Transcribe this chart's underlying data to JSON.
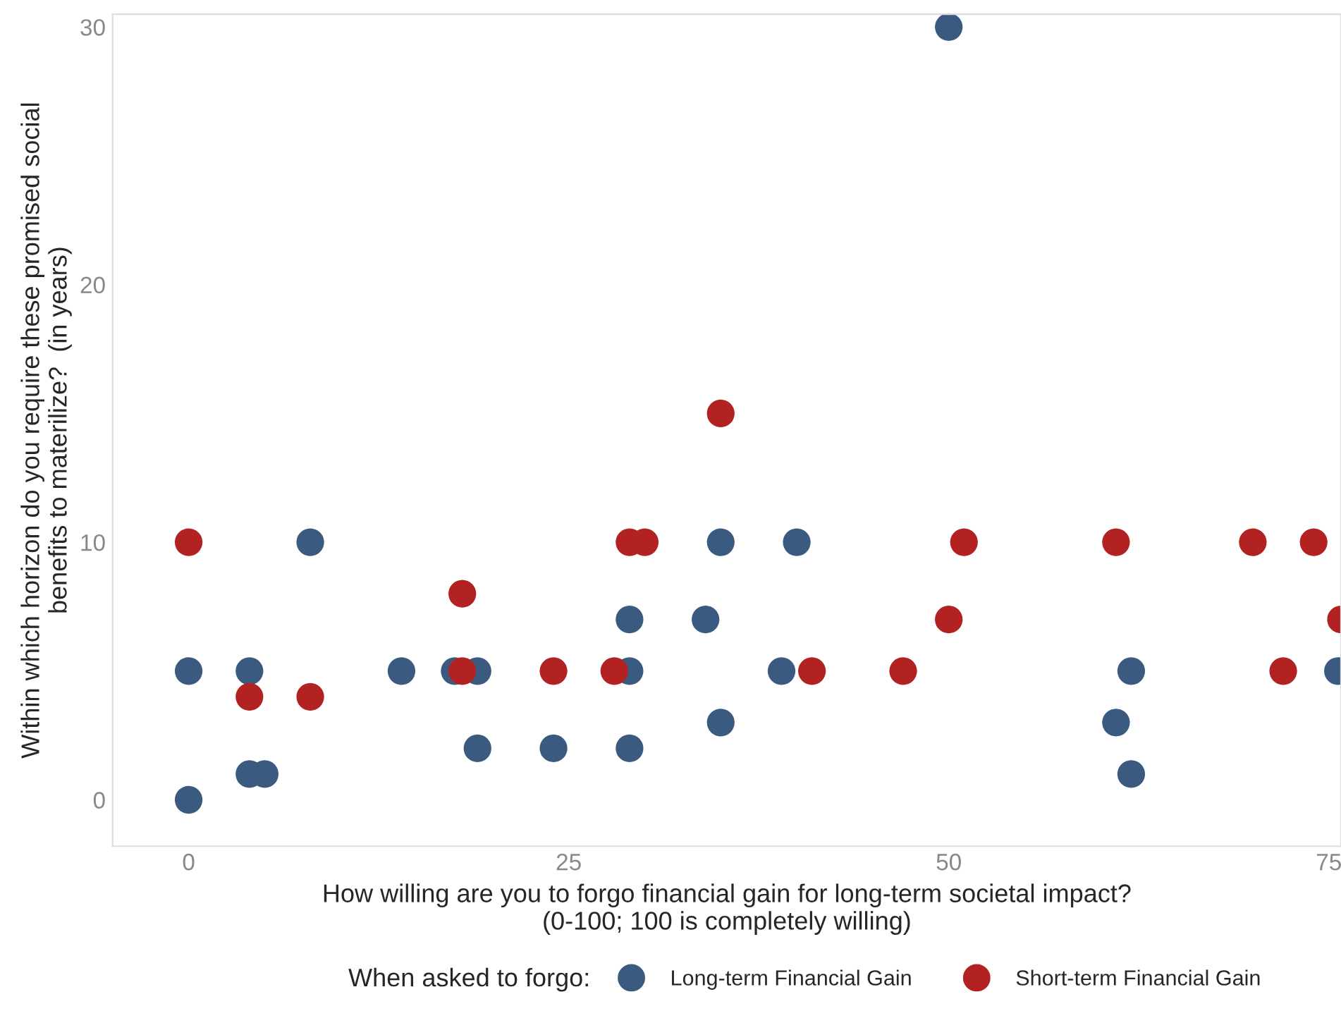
{
  "chart_data": {
    "type": "scatter",
    "xlabel": "How willing are you to forgo financial gain for long-term societal impact?\n(0-100; 100 is completely willing)",
    "ylabel": "Within which horizon do you require these promised social\nbenefits to materilize?  (in years)",
    "legend_title": "When asked to forgo:",
    "legend": "bottom",
    "grid": false,
    "marker": "circle",
    "xlim": [
      -5,
      75.8
    ],
    "ylim": [
      -1.8,
      30.5
    ],
    "xticks": [
      0,
      25,
      50,
      75
    ],
    "yticks": [
      0,
      10,
      20,
      30
    ],
    "series": [
      {
        "name": "Long-term Financial Gain",
        "color": "#3a5a80",
        "x": [
          0,
          0,
          8,
          4,
          4,
          5,
          14,
          17.5,
          19,
          19,
          24,
          29,
          29,
          29,
          34,
          35,
          35,
          40,
          39,
          50,
          61,
          62,
          62,
          75.6
        ],
        "values": [
          5,
          0,
          10,
          5,
          1,
          1,
          5,
          5,
          5,
          2,
          2,
          7,
          5,
          2,
          7,
          10,
          3,
          10,
          5,
          30,
          3,
          5,
          1,
          5
        ]
      },
      {
        "name": "Short-term Financial Gain",
        "color": "#b22222",
        "x": [
          0,
          4,
          8,
          18,
          18,
          24,
          28,
          29,
          30,
          35,
          41,
          47,
          50,
          51,
          61,
          70,
          72,
          74,
          75.8
        ],
        "values": [
          10,
          4,
          4,
          8,
          5,
          5,
          5,
          10,
          10,
          15,
          5,
          5,
          7,
          10,
          10,
          10,
          5,
          10,
          7
        ]
      }
    ]
  }
}
